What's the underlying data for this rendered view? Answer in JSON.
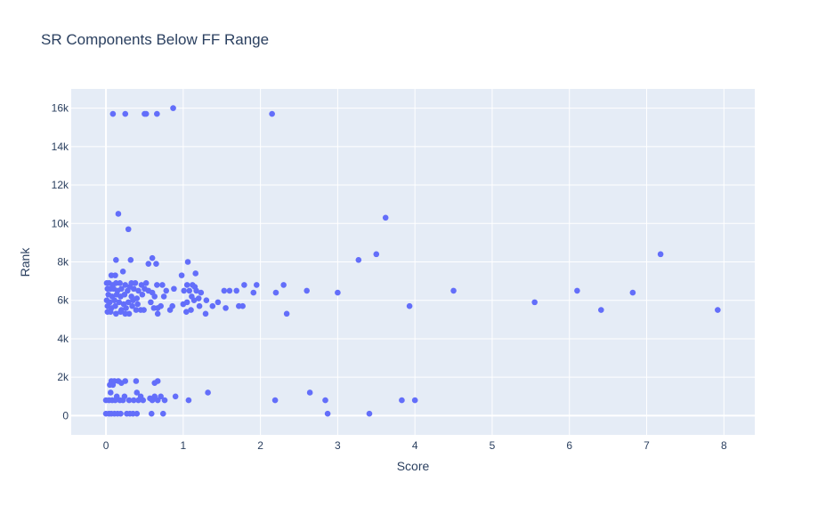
{
  "chart_data": {
    "type": "scatter",
    "title": "SR Components Below FF Range",
    "xlabel": "Score",
    "ylabel": "Rank",
    "xlim": [
      -0.45,
      8.4
    ],
    "ylim": [
      -1000,
      17000
    ],
    "x_ticks": [
      0,
      1,
      2,
      3,
      4,
      5,
      6,
      7,
      8
    ],
    "x_tick_labels": [
      "0",
      "1",
      "2",
      "3",
      "4",
      "5",
      "6",
      "7",
      "8"
    ],
    "y_ticks": [
      0,
      2000,
      4000,
      6000,
      8000,
      10000,
      12000,
      14000,
      16000
    ],
    "y_tick_labels": [
      "0",
      "2k",
      "4k",
      "6k",
      "8k",
      "10k",
      "12k",
      "14k",
      "16k"
    ],
    "grid": true,
    "marker_color": "#636efa",
    "plot_bgcolor": "#e5ecf6",
    "points": [
      [
        0.09,
        15700
      ],
      [
        0.25,
        15700
      ],
      [
        0.5,
        15700
      ],
      [
        0.52,
        15700
      ],
      [
        0.66,
        15700
      ],
      [
        0.87,
        16000
      ],
      [
        2.15,
        15700
      ],
      [
        0.16,
        10500
      ],
      [
        0.29,
        9700
      ],
      [
        3.62,
        10300
      ],
      [
        0.13,
        8100
      ],
      [
        0.32,
        8100
      ],
      [
        0.6,
        8200
      ],
      [
        0.65,
        7900
      ],
      [
        1.06,
        8000
      ],
      [
        3.27,
        8100
      ],
      [
        3.5,
        8400
      ],
      [
        7.18,
        8400
      ],
      [
        0.07,
        7300
      ],
      [
        0.12,
        7300
      ],
      [
        0.22,
        7500
      ],
      [
        0.55,
        7900
      ],
      [
        0.98,
        7300
      ],
      [
        1.16,
        7400
      ],
      [
        0.01,
        6900
      ],
      [
        0.04,
        6900
      ],
      [
        0.09,
        6800
      ],
      [
        0.13,
        6900
      ],
      [
        0.18,
        6900
      ],
      [
        0.25,
        6800
      ],
      [
        0.33,
        6900
      ],
      [
        0.38,
        6900
      ],
      [
        0.46,
        6800
      ],
      [
        0.52,
        6900
      ],
      [
        0.66,
        6800
      ],
      [
        0.73,
        6800
      ],
      [
        1.05,
        6800
      ],
      [
        1.12,
        6800
      ],
      [
        1.15,
        6700
      ],
      [
        1.79,
        6800
      ],
      [
        1.95,
        6800
      ],
      [
        2.3,
        6800
      ],
      [
        0.02,
        6600
      ],
      [
        0.06,
        6600
      ],
      [
        0.1,
        6600
      ],
      [
        0.15,
        6500
      ],
      [
        0.2,
        6600
      ],
      [
        0.28,
        6500
      ],
      [
        0.31,
        6700
      ],
      [
        0.36,
        6600
      ],
      [
        0.42,
        6500
      ],
      [
        0.5,
        6600
      ],
      [
        0.55,
        6500
      ],
      [
        0.6,
        6400
      ],
      [
        0.78,
        6500
      ],
      [
        0.88,
        6600
      ],
      [
        1.01,
        6500
      ],
      [
        1.08,
        6500
      ],
      [
        1.17,
        6500
      ],
      [
        1.23,
        6400
      ],
      [
        1.53,
        6500
      ],
      [
        1.6,
        6500
      ],
      [
        1.69,
        6500
      ],
      [
        1.91,
        6400
      ],
      [
        2.2,
        6400
      ],
      [
        2.6,
        6500
      ],
      [
        3.0,
        6400
      ],
      [
        4.5,
        6500
      ],
      [
        6.1,
        6500
      ],
      [
        6.82,
        6400
      ],
      [
        0.03,
        6300
      ],
      [
        0.08,
        6200
      ],
      [
        0.14,
        6300
      ],
      [
        0.19,
        6200
      ],
      [
        0.24,
        6300
      ],
      [
        0.33,
        6200
      ],
      [
        0.4,
        6100
      ],
      [
        0.47,
        6300
      ],
      [
        0.63,
        6200
      ],
      [
        0.75,
        6200
      ],
      [
        1.11,
        6200
      ],
      [
        1.2,
        6100
      ],
      [
        0.01,
        6000
      ],
      [
        0.05,
        5900
      ],
      [
        0.11,
        6000
      ],
      [
        0.17,
        5900
      ],
      [
        0.23,
        5800
      ],
      [
        0.29,
        5900
      ],
      [
        0.35,
        6000
      ],
      [
        0.41,
        5800
      ],
      [
        0.58,
        5900
      ],
      [
        1.0,
        5800
      ],
      [
        1.05,
        5900
      ],
      [
        1.14,
        6000
      ],
      [
        1.3,
        6000
      ],
      [
        1.45,
        5900
      ],
      [
        5.55,
        5900
      ],
      [
        0.02,
        5700
      ],
      [
        0.07,
        5600
      ],
      [
        0.12,
        5700
      ],
      [
        0.2,
        5500
      ],
      [
        0.26,
        5600
      ],
      [
        0.34,
        5700
      ],
      [
        0.39,
        5500
      ],
      [
        0.49,
        5500
      ],
      [
        0.62,
        5600
      ],
      [
        0.67,
        5600
      ],
      [
        0.71,
        5700
      ],
      [
        0.83,
        5500
      ],
      [
        0.86,
        5700
      ],
      [
        1.04,
        5400
      ],
      [
        1.1,
        5500
      ],
      [
        1.21,
        5700
      ],
      [
        1.38,
        5700
      ],
      [
        1.55,
        5600
      ],
      [
        1.72,
        5700
      ],
      [
        1.77,
        5700
      ],
      [
        3.93,
        5700
      ],
      [
        0.02,
        5400
      ],
      [
        0.06,
        5400
      ],
      [
        0.13,
        5300
      ],
      [
        0.19,
        5400
      ],
      [
        0.25,
        5300
      ],
      [
        0.3,
        5300
      ],
      [
        0.45,
        5500
      ],
      [
        0.67,
        5300
      ],
      [
        1.29,
        5300
      ],
      [
        2.34,
        5300
      ],
      [
        6.41,
        5500
      ],
      [
        7.92,
        5500
      ],
      [
        0.07,
        1800
      ],
      [
        0.11,
        1800
      ],
      [
        0.16,
        1800
      ],
      [
        0.2,
        1700
      ],
      [
        0.25,
        1800
      ],
      [
        0.39,
        1800
      ],
      [
        0.63,
        1700
      ],
      [
        0.67,
        1800
      ],
      [
        0.05,
        1600
      ],
      [
        0.09,
        1600
      ],
      [
        0.06,
        1200
      ],
      [
        0.14,
        1000
      ],
      [
        0.24,
        1000
      ],
      [
        0.4,
        1200
      ],
      [
        0.45,
        1000
      ],
      [
        0.57,
        900
      ],
      [
        0.63,
        1000
      ],
      [
        0.71,
        1000
      ],
      [
        0.9,
        1000
      ],
      [
        1.32,
        1200
      ],
      [
        2.64,
        1200
      ],
      [
        0.0,
        800
      ],
      [
        0.04,
        800
      ],
      [
        0.08,
        800
      ],
      [
        0.12,
        800
      ],
      [
        0.18,
        800
      ],
      [
        0.22,
        800
      ],
      [
        0.3,
        800
      ],
      [
        0.36,
        800
      ],
      [
        0.42,
        800
      ],
      [
        0.48,
        800
      ],
      [
        0.6,
        800
      ],
      [
        0.67,
        800
      ],
      [
        0.76,
        800
      ],
      [
        1.07,
        800
      ],
      [
        2.19,
        800
      ],
      [
        2.84,
        800
      ],
      [
        3.83,
        800
      ],
      [
        4.0,
        800
      ],
      [
        0.0,
        100
      ],
      [
        0.04,
        100
      ],
      [
        0.07,
        100
      ],
      [
        0.11,
        100
      ],
      [
        0.15,
        100
      ],
      [
        0.19,
        100
      ],
      [
        0.27,
        100
      ],
      [
        0.31,
        100
      ],
      [
        0.35,
        100
      ],
      [
        0.4,
        100
      ],
      [
        0.59,
        100
      ],
      [
        0.74,
        100
      ],
      [
        2.87,
        100
      ],
      [
        3.41,
        100
      ]
    ]
  }
}
